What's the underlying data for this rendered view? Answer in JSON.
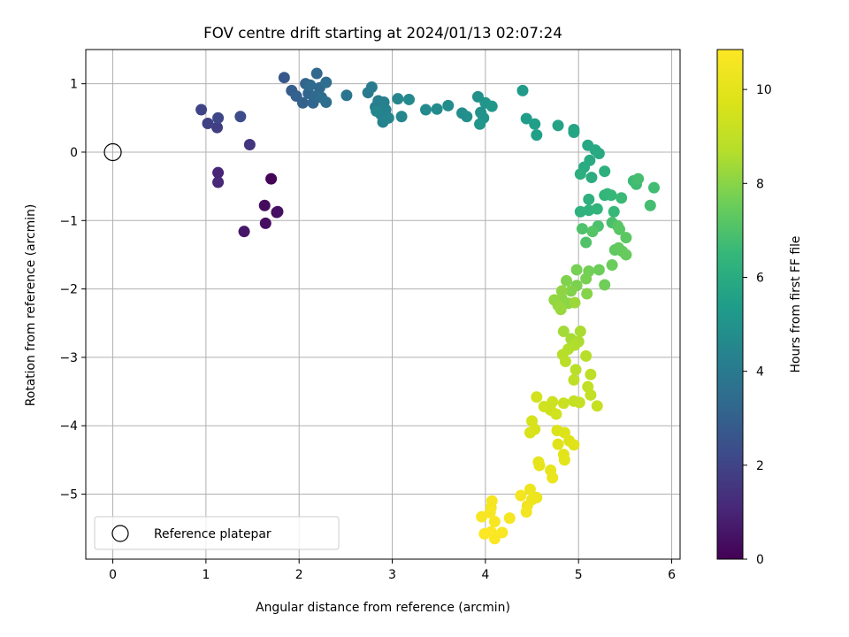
{
  "chart_data": {
    "type": "scatter",
    "title": "FOV centre drift starting at 2024/01/13 02:07:24",
    "xlabel": "Angular distance from reference (arcmin)",
    "ylabel": "Rotation from reference (arcmin)",
    "xlim": [
      -0.29,
      6.09
    ],
    "ylim": [
      -5.95,
      1.5
    ],
    "xticks": [
      0,
      1,
      2,
      3,
      4,
      5,
      6
    ],
    "yticks": [
      -5,
      -4,
      -3,
      -2,
      -1,
      0,
      1
    ],
    "grid": true,
    "colorbar": {
      "label": "Hours from first FF file",
      "range": [
        0,
        10.85
      ],
      "ticks": [
        0,
        2,
        4,
        6,
        8,
        10
      ],
      "colormap": "viridis"
    },
    "legend": {
      "placement": "lower-left",
      "entries": [
        "Reference platepar"
      ]
    },
    "reference_point": {
      "x": 0,
      "y": 0
    },
    "points": [
      {
        "x": 1.7,
        "y": -0.39,
        "c": 0.1
      },
      {
        "x": 1.76,
        "y": -0.88,
        "c": 0.2
      },
      {
        "x": 1.63,
        "y": -0.78,
        "c": 0.3
      },
      {
        "x": 1.64,
        "y": -1.04,
        "c": 0.35
      },
      {
        "x": 1.77,
        "y": -0.87,
        "c": 0.45
      },
      {
        "x": 1.41,
        "y": -1.16,
        "c": 0.6
      },
      {
        "x": 1.13,
        "y": -0.3,
        "c": 1.0
      },
      {
        "x": 1.13,
        "y": -0.44,
        "c": 1.1
      },
      {
        "x": 1.47,
        "y": 0.11,
        "c": 1.5
      },
      {
        "x": 1.12,
        "y": 0.36,
        "c": 1.8
      },
      {
        "x": 1.02,
        "y": 0.42,
        "c": 1.9
      },
      {
        "x": 0.95,
        "y": 0.62,
        "c": 2.0
      },
      {
        "x": 1.13,
        "y": 0.5,
        "c": 2.1
      },
      {
        "x": 1.37,
        "y": 0.52,
        "c": 2.3
      },
      {
        "x": 1.84,
        "y": 1.09,
        "c": 2.7
      },
      {
        "x": 1.92,
        "y": 0.9,
        "c": 2.9
      },
      {
        "x": 1.97,
        "y": 0.82,
        "c": 3.0
      },
      {
        "x": 2.04,
        "y": 0.72,
        "c": 3.05
      },
      {
        "x": 2.07,
        "y": 1.0,
        "c": 3.1
      },
      {
        "x": 2.1,
        "y": 0.86,
        "c": 3.15
      },
      {
        "x": 2.15,
        "y": 0.72,
        "c": 3.2
      },
      {
        "x": 2.19,
        "y": 1.15,
        "c": 3.25
      },
      {
        "x": 2.22,
        "y": 0.94,
        "c": 3.3
      },
      {
        "x": 2.18,
        "y": 0.82,
        "c": 3.35
      },
      {
        "x": 2.12,
        "y": 0.98,
        "c": 3.4
      },
      {
        "x": 2.24,
        "y": 0.8,
        "c": 3.45
      },
      {
        "x": 2.29,
        "y": 1.02,
        "c": 3.5
      },
      {
        "x": 2.29,
        "y": 0.73,
        "c": 3.55
      },
      {
        "x": 2.51,
        "y": 0.83,
        "c": 3.8
      },
      {
        "x": 2.74,
        "y": 0.87,
        "c": 4.0
      },
      {
        "x": 2.78,
        "y": 0.95,
        "c": 4.05
      },
      {
        "x": 2.82,
        "y": 0.66,
        "c": 4.1
      },
      {
        "x": 2.85,
        "y": 0.75,
        "c": 4.15
      },
      {
        "x": 2.88,
        "y": 0.55,
        "c": 4.2
      },
      {
        "x": 2.91,
        "y": 0.73,
        "c": 4.25
      },
      {
        "x": 2.93,
        "y": 0.62,
        "c": 4.3
      },
      {
        "x": 2.9,
        "y": 0.44,
        "c": 4.35
      },
      {
        "x": 2.96,
        "y": 0.5,
        "c": 4.4
      },
      {
        "x": 2.83,
        "y": 0.6,
        "c": 4.45
      },
      {
        "x": 3.06,
        "y": 0.78,
        "c": 4.5
      },
      {
        "x": 3.1,
        "y": 0.52,
        "c": 4.55
      },
      {
        "x": 3.18,
        "y": 0.77,
        "c": 4.6
      },
      {
        "x": 3.36,
        "y": 0.62,
        "c": 4.65
      },
      {
        "x": 3.48,
        "y": 0.63,
        "c": 4.7
      },
      {
        "x": 3.6,
        "y": 0.68,
        "c": 4.75
      },
      {
        "x": 3.75,
        "y": 0.57,
        "c": 4.8
      },
      {
        "x": 3.8,
        "y": 0.52,
        "c": 4.85
      },
      {
        "x": 3.92,
        "y": 0.81,
        "c": 4.9
      },
      {
        "x": 3.95,
        "y": 0.58,
        "c": 4.95
      },
      {
        "x": 3.98,
        "y": 0.5,
        "c": 5.0
      },
      {
        "x": 4.0,
        "y": 0.72,
        "c": 5.05
      },
      {
        "x": 3.94,
        "y": 0.41,
        "c": 5.1
      },
      {
        "x": 4.07,
        "y": 0.67,
        "c": 5.15
      },
      {
        "x": 4.4,
        "y": 0.9,
        "c": 5.3
      },
      {
        "x": 4.44,
        "y": 0.49,
        "c": 5.4
      },
      {
        "x": 4.53,
        "y": 0.41,
        "c": 5.45
      },
      {
        "x": 4.55,
        "y": 0.25,
        "c": 5.5
      },
      {
        "x": 4.78,
        "y": 0.39,
        "c": 5.6
      },
      {
        "x": 4.95,
        "y": 0.33,
        "c": 5.7
      },
      {
        "x": 4.95,
        "y": 0.29,
        "c": 5.75
      },
      {
        "x": 5.1,
        "y": 0.1,
        "c": 5.8
      },
      {
        "x": 5.18,
        "y": 0.03,
        "c": 5.85
      },
      {
        "x": 5.22,
        "y": -0.02,
        "c": 5.9
      },
      {
        "x": 5.12,
        "y": -0.12,
        "c": 5.95
      },
      {
        "x": 5.06,
        "y": -0.22,
        "c": 6.0
      },
      {
        "x": 5.14,
        "y": -0.37,
        "c": 6.05
      },
      {
        "x": 5.02,
        "y": -0.32,
        "c": 6.1
      },
      {
        "x": 5.28,
        "y": -0.28,
        "c": 6.15
      },
      {
        "x": 5.11,
        "y": -0.69,
        "c": 6.2
      },
      {
        "x": 5.02,
        "y": -0.87,
        "c": 6.25
      },
      {
        "x": 5.11,
        "y": -0.85,
        "c": 6.3
      },
      {
        "x": 5.2,
        "y": -0.83,
        "c": 6.35
      },
      {
        "x": 5.28,
        "y": -0.63,
        "c": 6.4
      },
      {
        "x": 5.31,
        "y": -0.61,
        "c": 6.45
      },
      {
        "x": 5.35,
        "y": -0.63,
        "c": 6.5
      },
      {
        "x": 5.38,
        "y": -0.87,
        "c": 6.55
      },
      {
        "x": 5.46,
        "y": -0.67,
        "c": 6.6
      },
      {
        "x": 5.59,
        "y": -0.42,
        "c": 6.65
      },
      {
        "x": 5.62,
        "y": -0.47,
        "c": 6.7
      },
      {
        "x": 5.81,
        "y": -0.52,
        "c": 6.75
      },
      {
        "x": 5.77,
        "y": -0.78,
        "c": 6.8
      },
      {
        "x": 5.64,
        "y": -0.39,
        "c": 6.85
      },
      {
        "x": 5.36,
        "y": -1.03,
        "c": 6.9
      },
      {
        "x": 5.21,
        "y": -1.08,
        "c": 6.95
      },
      {
        "x": 5.04,
        "y": -1.12,
        "c": 7.0
      },
      {
        "x": 5.08,
        "y": -1.32,
        "c": 7.05
      },
      {
        "x": 5.15,
        "y": -1.16,
        "c": 7.1
      },
      {
        "x": 5.42,
        "y": -1.08,
        "c": 7.15
      },
      {
        "x": 5.44,
        "y": -1.13,
        "c": 7.2
      },
      {
        "x": 5.51,
        "y": -1.25,
        "c": 7.25
      },
      {
        "x": 5.39,
        "y": -1.43,
        "c": 7.3
      },
      {
        "x": 5.43,
        "y": -1.4,
        "c": 7.35
      },
      {
        "x": 5.47,
        "y": -1.45,
        "c": 7.4
      },
      {
        "x": 5.51,
        "y": -1.5,
        "c": 7.45
      },
      {
        "x": 5.36,
        "y": -1.65,
        "c": 7.5
      },
      {
        "x": 5.22,
        "y": -1.72,
        "c": 7.55
      },
      {
        "x": 5.28,
        "y": -1.94,
        "c": 7.6
      },
      {
        "x": 5.11,
        "y": -1.74,
        "c": 7.65
      },
      {
        "x": 4.98,
        "y": -1.72,
        "c": 7.7
      },
      {
        "x": 5.08,
        "y": -1.85,
        "c": 7.75
      },
      {
        "x": 4.98,
        "y": -1.95,
        "c": 7.8
      },
      {
        "x": 4.87,
        "y": -1.88,
        "c": 7.85
      },
      {
        "x": 4.92,
        "y": -2.03,
        "c": 7.9
      },
      {
        "x": 5.09,
        "y": -2.07,
        "c": 7.95
      },
      {
        "x": 4.82,
        "y": -2.14,
        "c": 8.0
      },
      {
        "x": 4.89,
        "y": -2.21,
        "c": 8.05
      },
      {
        "x": 4.82,
        "y": -2.03,
        "c": 8.1
      },
      {
        "x": 4.74,
        "y": -2.16,
        "c": 8.15
      },
      {
        "x": 4.78,
        "y": -2.24,
        "c": 8.2
      },
      {
        "x": 4.81,
        "y": -2.3,
        "c": 8.25
      },
      {
        "x": 4.96,
        "y": -2.2,
        "c": 8.3
      },
      {
        "x": 4.84,
        "y": -2.62,
        "c": 8.4
      },
      {
        "x": 4.92,
        "y": -2.73,
        "c": 8.45
      },
      {
        "x": 5.02,
        "y": -2.62,
        "c": 8.5
      },
      {
        "x": 5.0,
        "y": -2.77,
        "c": 8.55
      },
      {
        "x": 4.96,
        "y": -2.82,
        "c": 8.6
      },
      {
        "x": 4.89,
        "y": -2.88,
        "c": 8.65
      },
      {
        "x": 4.83,
        "y": -2.96,
        "c": 8.7
      },
      {
        "x": 5.08,
        "y": -2.98,
        "c": 8.75
      },
      {
        "x": 4.97,
        "y": -3.18,
        "c": 8.8
      },
      {
        "x": 4.86,
        "y": -3.06,
        "c": 8.85
      },
      {
        "x": 5.13,
        "y": -3.25,
        "c": 8.9
      },
      {
        "x": 4.95,
        "y": -3.33,
        "c": 8.95
      },
      {
        "x": 5.1,
        "y": -3.43,
        "c": 9.0
      },
      {
        "x": 5.13,
        "y": -3.55,
        "c": 9.05
      },
      {
        "x": 4.95,
        "y": -3.64,
        "c": 9.1
      },
      {
        "x": 5.01,
        "y": -3.66,
        "c": 9.15
      },
      {
        "x": 5.2,
        "y": -3.71,
        "c": 9.2
      },
      {
        "x": 4.84,
        "y": -3.67,
        "c": 9.25
      },
      {
        "x": 4.72,
        "y": -3.65,
        "c": 9.3
      },
      {
        "x": 4.7,
        "y": -3.77,
        "c": 9.35
      },
      {
        "x": 4.63,
        "y": -3.72,
        "c": 9.4
      },
      {
        "x": 4.76,
        "y": -3.83,
        "c": 9.45
      },
      {
        "x": 4.55,
        "y": -3.58,
        "c": 9.5
      },
      {
        "x": 4.5,
        "y": -3.93,
        "c": 9.55
      },
      {
        "x": 4.53,
        "y": -4.05,
        "c": 9.6
      },
      {
        "x": 4.48,
        "y": -4.1,
        "c": 9.65
      },
      {
        "x": 4.77,
        "y": -4.07,
        "c": 9.7
      },
      {
        "x": 4.85,
        "y": -4.1,
        "c": 9.75
      },
      {
        "x": 4.9,
        "y": -4.22,
        "c": 9.8
      },
      {
        "x": 4.95,
        "y": -4.28,
        "c": 9.85
      },
      {
        "x": 4.78,
        "y": -4.27,
        "c": 9.9
      },
      {
        "x": 4.84,
        "y": -4.42,
        "c": 9.95
      },
      {
        "x": 4.85,
        "y": -4.5,
        "c": 10.0
      },
      {
        "x": 4.57,
        "y": -4.53,
        "c": 10.05
      },
      {
        "x": 4.58,
        "y": -4.58,
        "c": 10.1
      },
      {
        "x": 4.7,
        "y": -4.65,
        "c": 10.15
      },
      {
        "x": 4.72,
        "y": -4.76,
        "c": 10.2
      },
      {
        "x": 4.55,
        "y": -5.05,
        "c": 10.25
      },
      {
        "x": 4.48,
        "y": -4.93,
        "c": 10.3
      },
      {
        "x": 4.5,
        "y": -5.08,
        "c": 10.35
      },
      {
        "x": 4.45,
        "y": -5.17,
        "c": 10.4
      },
      {
        "x": 4.44,
        "y": -5.26,
        "c": 10.45
      },
      {
        "x": 4.38,
        "y": -5.02,
        "c": 10.5
      },
      {
        "x": 4.26,
        "y": -5.35,
        "c": 10.55
      },
      {
        "x": 4.07,
        "y": -5.1,
        "c": 10.6
      },
      {
        "x": 4.06,
        "y": -5.2,
        "c": 10.62
      },
      {
        "x": 4.05,
        "y": -5.27,
        "c": 10.65
      },
      {
        "x": 3.96,
        "y": -5.33,
        "c": 10.68
      },
      {
        "x": 4.1,
        "y": -5.4,
        "c": 10.7
      },
      {
        "x": 4.18,
        "y": -5.56,
        "c": 10.72
      },
      {
        "x": 4.1,
        "y": -5.65,
        "c": 10.75
      },
      {
        "x": 4.06,
        "y": -5.55,
        "c": 10.78
      },
      {
        "x": 3.99,
        "y": -5.58,
        "c": 10.8
      }
    ]
  }
}
